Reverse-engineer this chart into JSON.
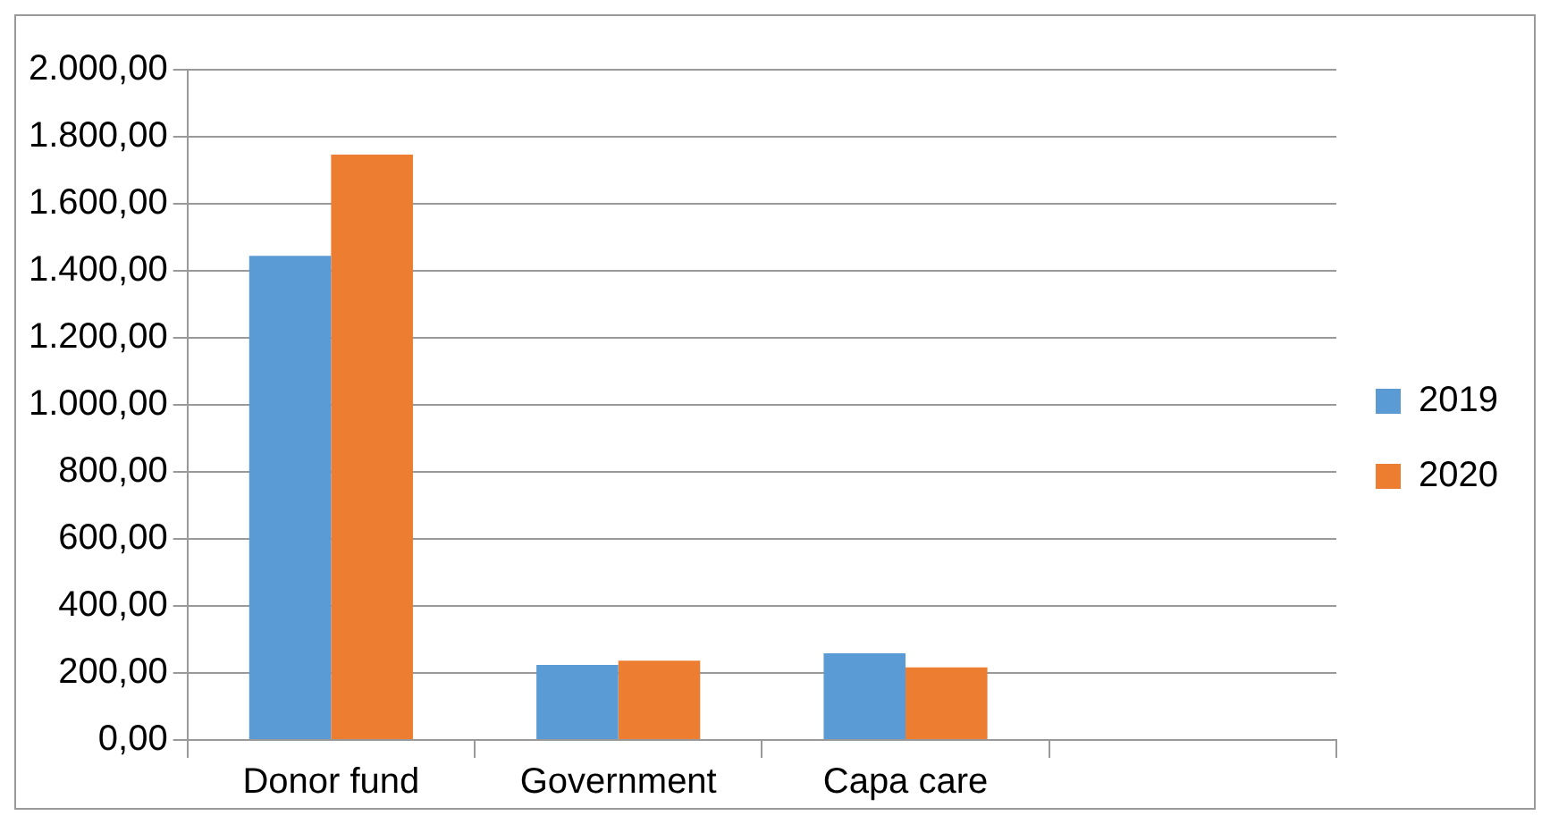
{
  "chart_data": {
    "type": "bar",
    "categories": [
      "Donor fund",
      "Government",
      "Capa care",
      null
    ],
    "series": [
      {
        "name": "2019",
        "color": "#5b9bd5",
        "values": [
          1445,
          224,
          259,
          null
        ]
      },
      {
        "name": "2020",
        "color": "#ed7d31",
        "values": [
          1747,
          237,
          217,
          null
        ]
      }
    ],
    "ylim": [
      0,
      2000
    ],
    "yticks": [
      {
        "value": 0,
        "label": "0,00"
      },
      {
        "value": 200,
        "label": "200,00"
      },
      {
        "value": 400,
        "label": "400,00"
      },
      {
        "value": 600,
        "label": "600,00"
      },
      {
        "value": 800,
        "label": "800,00"
      },
      {
        "value": 1000,
        "label": "1.000,00"
      },
      {
        "value": 1200,
        "label": "1.200,00"
      },
      {
        "value": 1400,
        "label": "1.400,00"
      },
      {
        "value": 1600,
        "label": "1.600,00"
      },
      {
        "value": 1800,
        "label": "1.800,00"
      },
      {
        "value": 2000,
        "label": "2.000,00"
      }
    ],
    "grid": "y",
    "legend": "right"
  }
}
